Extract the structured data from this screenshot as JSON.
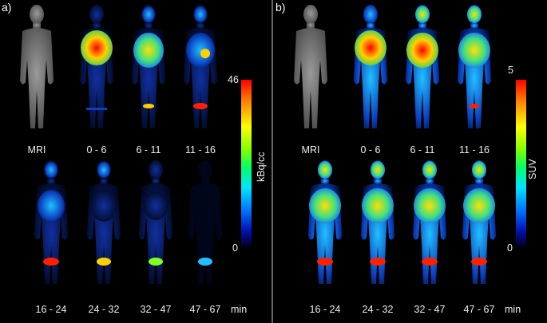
{
  "panel_a": {
    "label": "a)",
    "top_row_captions": [
      "MRI",
      "0 - 6",
      "6 - 11",
      "11 - 16"
    ],
    "bottom_row_captions": [
      "16 - 24",
      "24 - 32",
      "32 - 47",
      "47 - 67"
    ],
    "unit": "min",
    "colorbar": {
      "max": "46",
      "min": "0",
      "label": "kBq/cc"
    }
  },
  "panel_b": {
    "label": "b)",
    "top_row_captions": [
      "MRI",
      "0 - 6",
      "6 - 11",
      "11 - 16"
    ],
    "bottom_row_captions": [
      "16 - 24",
      "24 - 32",
      "32 - 47",
      "47 - 67"
    ],
    "unit": "min",
    "colorbar": {
      "max": "5",
      "min": "0",
      "label": "SUV"
    }
  },
  "colors": {
    "divider": "#666666",
    "background": "#000000"
  }
}
